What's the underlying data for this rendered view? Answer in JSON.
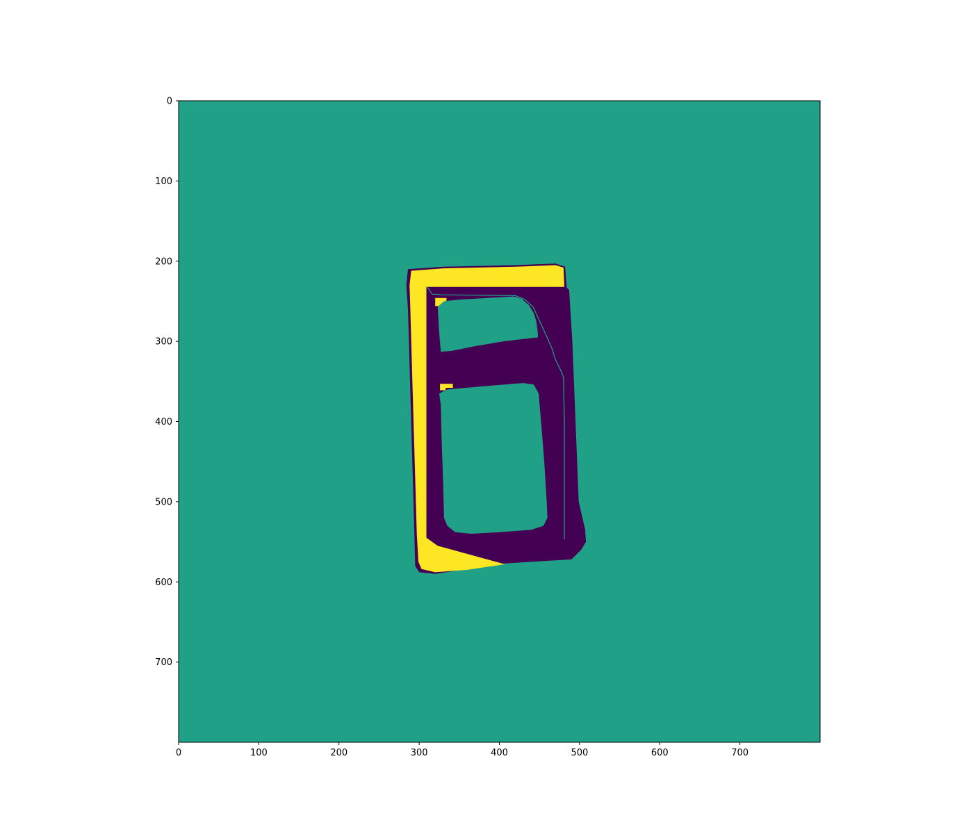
{
  "chart_data": {
    "type": "heatmap",
    "title": "",
    "xlabel": "",
    "ylabel": "",
    "xlim": [
      0,
      800
    ],
    "ylim": [
      800,
      0
    ],
    "y_axis_inverted": true,
    "grid": false,
    "colormap": "viridis",
    "xticks": [
      0,
      100,
      200,
      300,
      400,
      500,
      600,
      700
    ],
    "yticks": [
      0,
      100,
      200,
      300,
      400,
      500,
      600,
      700
    ],
    "colors": {
      "background": "#21a088",
      "low": "#440154",
      "high": "#fde725"
    },
    "value_levels": [
      {
        "name": "background",
        "color": "#21a088"
      },
      {
        "name": "low",
        "color": "#440154"
      },
      {
        "name": "high",
        "color": "#fde725"
      }
    ],
    "regions": [
      {
        "level": "low",
        "polygon": [
          [
            286,
            210
          ],
          [
            330,
            207
          ],
          [
            420,
            205
          ],
          [
            470,
            203
          ],
          [
            482,
            207
          ],
          [
            484,
            233
          ],
          [
            487,
            236
          ],
          [
            491,
            300
          ],
          [
            495,
            400
          ],
          [
            499,
            500
          ],
          [
            507,
            535
          ],
          [
            508,
            550
          ],
          [
            502,
            560
          ],
          [
            490,
            572
          ],
          [
            407,
            577
          ],
          [
            360,
            584
          ],
          [
            320,
            590
          ],
          [
            300,
            588
          ],
          [
            295,
            580
          ],
          [
            294,
            540
          ],
          [
            292,
            470
          ],
          [
            290,
            400
          ],
          [
            288,
            330
          ],
          [
            286,
            260
          ],
          [
            284,
            230
          ]
        ]
      },
      {
        "level": "high",
        "polygon": [
          [
            290,
            212
          ],
          [
            330,
            209
          ],
          [
            420,
            207
          ],
          [
            470,
            205
          ],
          [
            480,
            208
          ],
          [
            481,
            232
          ],
          [
            309,
            232
          ],
          [
            309,
            545
          ],
          [
            323,
            555
          ],
          [
            407,
            578
          ],
          [
            360,
            585
          ],
          [
            320,
            588
          ],
          [
            303,
            584
          ],
          [
            299,
            575
          ],
          [
            297,
            540
          ],
          [
            295,
            470
          ],
          [
            293,
            400
          ],
          [
            291,
            330
          ],
          [
            289,
            260
          ],
          [
            288,
            230
          ]
        ]
      },
      {
        "level": "high",
        "polygon": [
          [
            320,
            246
          ],
          [
            334,
            246
          ],
          [
            334,
            253
          ],
          [
            329,
            253
          ],
          [
            329,
            256
          ],
          [
            320,
            256
          ]
        ]
      },
      {
        "level": "high",
        "polygon": [
          [
            326,
            353
          ],
          [
            342,
            353
          ],
          [
            342,
            358
          ],
          [
            333,
            358
          ],
          [
            333,
            361
          ],
          [
            326,
            361
          ]
        ]
      },
      {
        "level": "background",
        "polygon": [
          [
            323,
            257
          ],
          [
            331,
            250
          ],
          [
            350,
            248
          ],
          [
            400,
            245
          ],
          [
            418,
            244
          ],
          [
            428,
            247
          ],
          [
            437,
            255
          ],
          [
            443,
            265
          ],
          [
            446,
            275
          ],
          [
            448,
            290
          ],
          [
            448,
            295
          ],
          [
            405,
            300
          ],
          [
            370,
            306
          ],
          [
            340,
            312
          ],
          [
            327,
            313
          ],
          [
            325,
            290
          ]
        ]
      },
      {
        "level": "background",
        "polygon": [
          [
            325,
            365
          ],
          [
            335,
            360
          ],
          [
            380,
            356
          ],
          [
            430,
            352
          ],
          [
            443,
            354
          ],
          [
            449,
            365
          ],
          [
            452,
            400
          ],
          [
            456,
            450
          ],
          [
            459,
            500
          ],
          [
            460,
            520
          ],
          [
            455,
            530
          ],
          [
            440,
            535
          ],
          [
            400,
            538
          ],
          [
            365,
            540
          ],
          [
            345,
            538
          ],
          [
            335,
            530
          ],
          [
            331,
            520
          ],
          [
            330,
            480
          ],
          [
            328,
            420
          ],
          [
            327,
            380
          ]
        ]
      }
    ],
    "lines": [
      {
        "level": "background",
        "points": [
          [
            310,
            232
          ],
          [
            316,
            241
          ],
          [
            328,
            242
          ],
          [
            420,
            243
          ],
          [
            432,
            248
          ],
          [
            442,
            257
          ],
          [
            448,
            270
          ],
          [
            454,
            283
          ],
          [
            460,
            296
          ],
          [
            466,
            310
          ],
          [
            470,
            323
          ],
          [
            477,
            337
          ],
          [
            480,
            345
          ],
          [
            481,
            400
          ],
          [
            481,
            470
          ],
          [
            481,
            547
          ]
        ]
      }
    ]
  }
}
